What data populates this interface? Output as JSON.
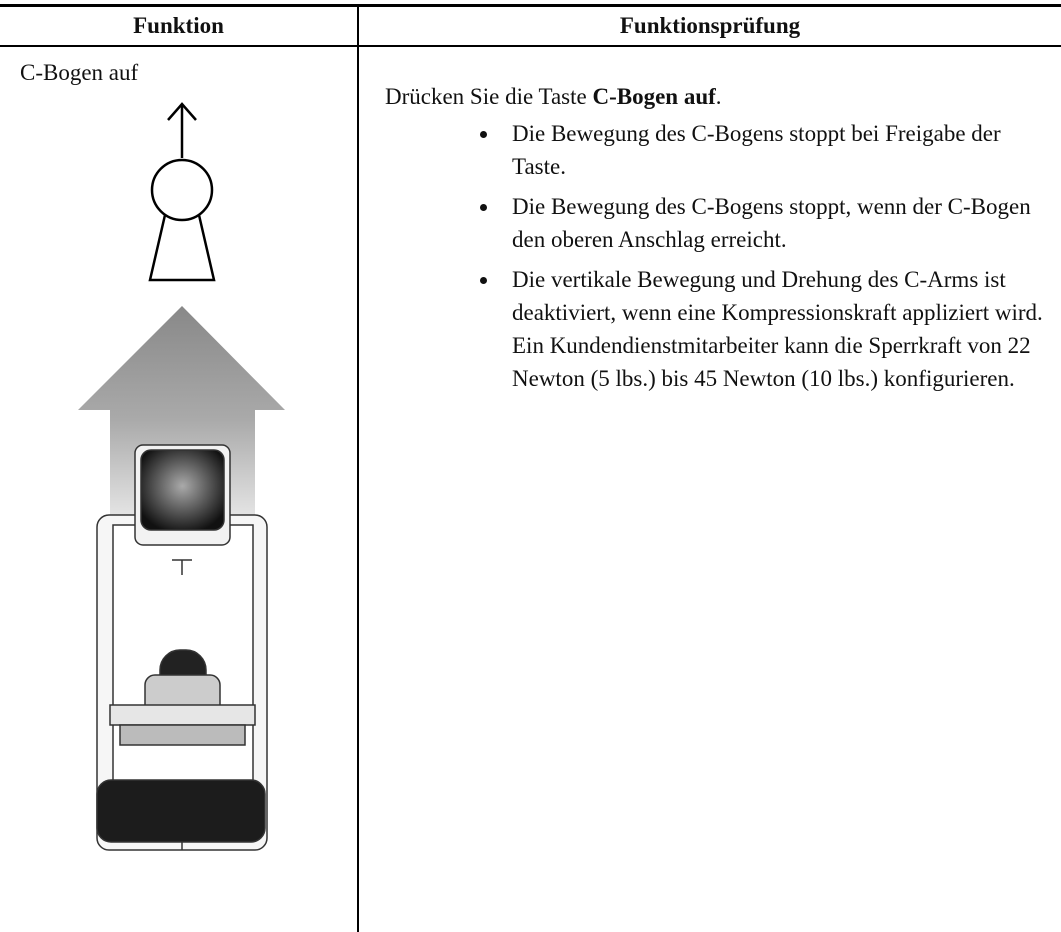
{
  "table": {
    "headers": [
      "Funktion",
      "Funktionsprüfung"
    ],
    "rows": [
      {
        "function": "C-Bogen auf",
        "check": {
          "intro": [
            "Drücken Sie die Taste ",
            "C-Bogen auf",
            "."
          ],
          "bullets": [
            "Die Bewegung des C-Bogens stoppt bei Freigabe der Taste.",
            "Die Bewegung des C-Bogens stoppt, wenn der C-Bogen den oberen Anschlag erreicht.",
            "Die vertikale Bewegung und Drehung des C-Arms ist deaktiviert, wenn eine Kompressionskraft appliziert wird. Ein Kundendienstmitarbeiter kann die Sperrkraft von 22 Newton (5 lbs.) bis 45 Newton (10 lbs.) konfigurieren."
          ]
        }
      }
    ]
  }
}
